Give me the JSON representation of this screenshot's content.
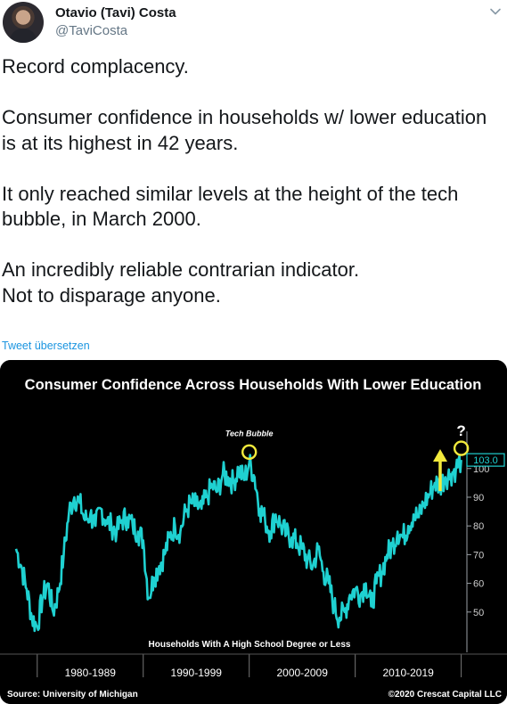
{
  "tweet": {
    "display_name": "Otavio (Tavi) Costa",
    "handle": "@TaviCosta",
    "avatar_icon": "profile-photo",
    "more_icon": "chevron-down-icon",
    "paragraphs": [
      "Record complacency.",
      "Consumer confidence in households w/ lower education is at its highest in 42 years.",
      "It only reached similar levels at the height of the tech bubble, in March 2000.",
      "An incredibly reliable contrarian indicator.\nNot to disparage anyone."
    ],
    "translate_link": "Tweet übersetzen"
  },
  "chart_data": {
    "type": "line",
    "title": "Consumer Confidence Across Households With Lower Education",
    "series_label": "Households With A High School Degree or Less",
    "x_ticks": [
      "1980-1989",
      "1990-1999",
      "2000-2009",
      "2010-2019"
    ],
    "y_ticks": [
      50,
      60,
      70,
      80,
      90,
      100
    ],
    "ylim": [
      40,
      108
    ],
    "xlim": [
      1978.0,
      2020.2
    ],
    "last_value_label": "103.0",
    "annotations": {
      "tech_bubble": "Tech Bubble",
      "question": "?"
    },
    "source": "Source: University of Michigan",
    "credit": "©2020 Crescat Capital LLC",
    "colors": {
      "line": "#1fd1d1",
      "background": "#000000",
      "highlight": "#f2ea3c",
      "text": "#ffffff",
      "label_box": "#1fd1d1"
    },
    "grid": false,
    "x": [
      1978.0,
      1978.5,
      1979.0,
      1979.5,
      1980.0,
      1980.5,
      1981.0,
      1981.5,
      1982.0,
      1982.5,
      1983.0,
      1983.5,
      1984.0,
      1984.5,
      1985.0,
      1985.5,
      1986.0,
      1986.5,
      1987.0,
      1987.5,
      1988.0,
      1988.5,
      1989.0,
      1989.5,
      1990.0,
      1990.5,
      1991.0,
      1991.5,
      1992.0,
      1992.5,
      1993.0,
      1993.5,
      1994.0,
      1994.5,
      1995.0,
      1995.5,
      1996.0,
      1996.5,
      1997.0,
      1997.5,
      1998.0,
      1998.5,
      1999.0,
      1999.5,
      2000.0,
      2000.5,
      2001.0,
      2001.5,
      2002.0,
      2002.5,
      2003.0,
      2003.5,
      2004.0,
      2004.5,
      2005.0,
      2005.5,
      2006.0,
      2006.5,
      2007.0,
      2007.5,
      2008.0,
      2008.5,
      2009.0,
      2009.5,
      2010.0,
      2010.5,
      2011.0,
      2011.5,
      2012.0,
      2012.5,
      2013.0,
      2013.5,
      2014.0,
      2014.5,
      2015.0,
      2015.5,
      2016.0,
      2016.5,
      2017.0,
      2017.5,
      2018.0,
      2018.5,
      2019.0,
      2019.5,
      2020.0
    ],
    "y": [
      72,
      66,
      58,
      48,
      45,
      55,
      60,
      50,
      57,
      70,
      85,
      90,
      88,
      82,
      84,
      80,
      86,
      82,
      80,
      78,
      82,
      83,
      80,
      78,
      75,
      55,
      62,
      66,
      70,
      76,
      80,
      78,
      85,
      88,
      87,
      86,
      90,
      94,
      92,
      98,
      97,
      95,
      100,
      96,
      102,
      97,
      86,
      82,
      78,
      84,
      80,
      77,
      76,
      74,
      72,
      68,
      66,
      72,
      64,
      60,
      52,
      48,
      50,
      56,
      58,
      56,
      60,
      52,
      60,
      64,
      70,
      73,
      78,
      76,
      80,
      84,
      83,
      88,
      91,
      95,
      94,
      97,
      98,
      100,
      103
    ]
  }
}
